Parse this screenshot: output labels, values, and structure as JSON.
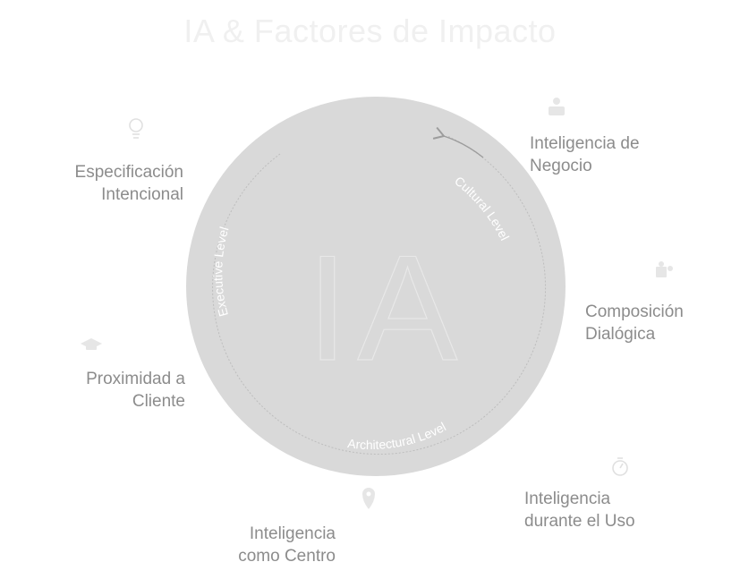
{
  "title": "IA & Factores de Impacto",
  "center_label": "IA",
  "levels": {
    "executive": "Executive Level",
    "cultural": "Cultural Level",
    "architectural": "Architectural Level"
  },
  "factors": {
    "especificacion": {
      "line1": "Especificación",
      "line2": "Intencional",
      "icon": "lightbulb-icon"
    },
    "negocio": {
      "line1": "Inteligencia de",
      "line2": "Negocio",
      "icon": "business-person-icon"
    },
    "composicion": {
      "line1": "Composición",
      "line2": "Dialógica",
      "icon": "puzzle-icon"
    },
    "proximidad": {
      "line1": "Proximidad a",
      "line2": "Cliente",
      "icon": "graduation-cap-icon"
    },
    "centro": {
      "line1": "Inteligencia",
      "line2": "como Centro",
      "icon": "map-pin-icon"
    },
    "uso": {
      "line1": "Inteligencia",
      "line2": "durante el Uso",
      "icon": "stopwatch-icon"
    }
  },
  "colors": {
    "circle": "#d9d9d9",
    "text": "#8c8c8c",
    "icon": "#e6e6e6",
    "title": "#f0f0f0"
  }
}
